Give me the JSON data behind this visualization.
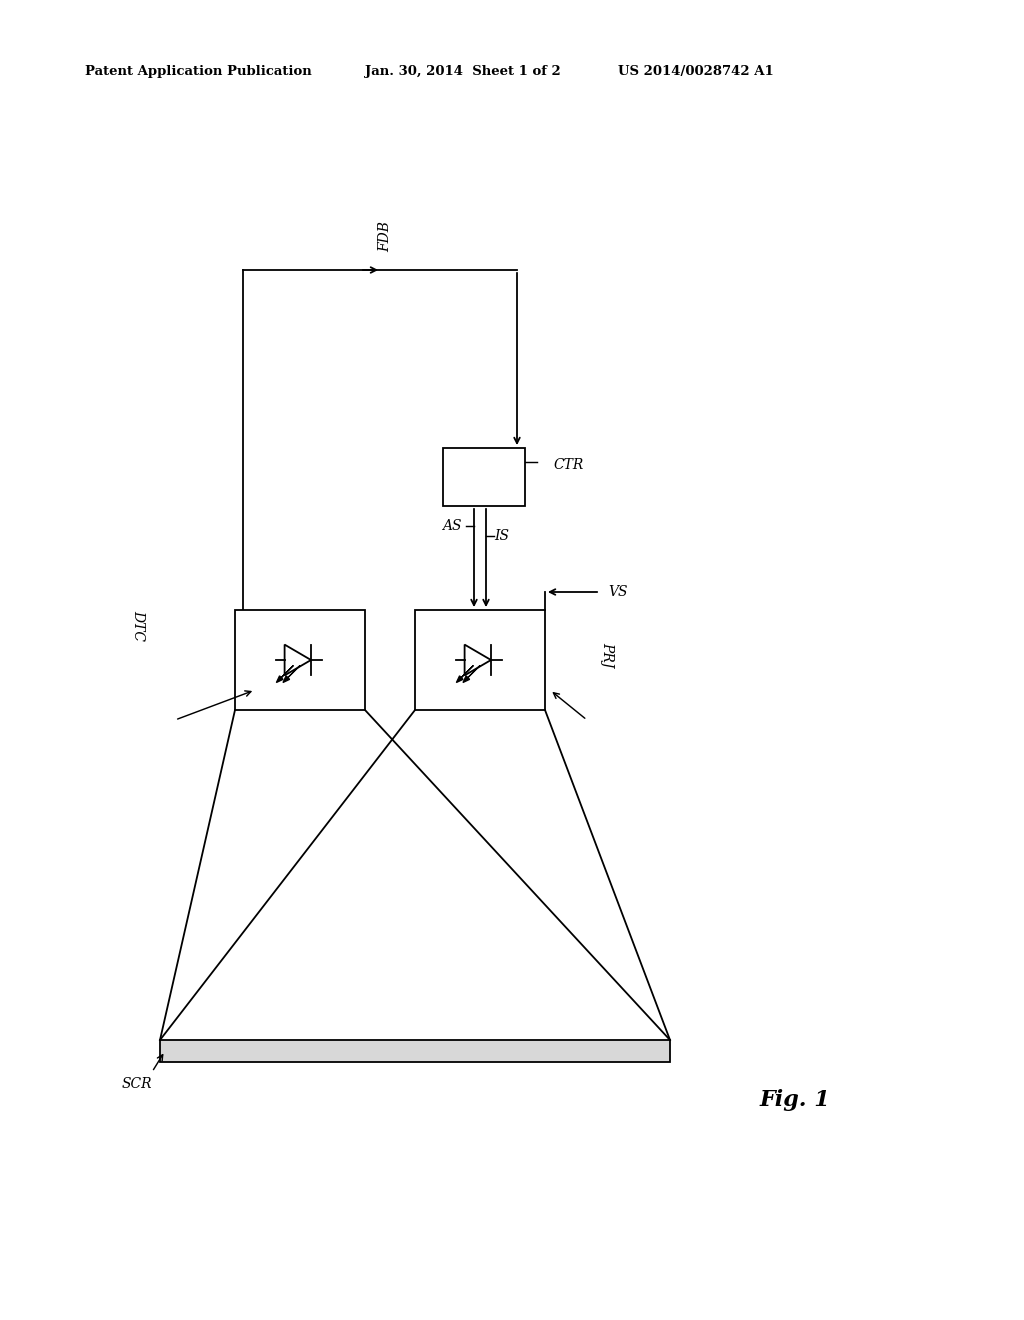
{
  "bg_color": "#ffffff",
  "header_left": "Patent Application Publication",
  "header_mid": "Jan. 30, 2014  Sheet 1 of 2",
  "header_right": "US 2014/0028742 A1",
  "fig_label": "Fig. 1",
  "line_color": "#000000",
  "line_width": 1.3
}
